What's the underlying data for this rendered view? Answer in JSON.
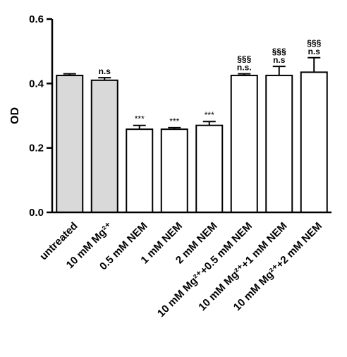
{
  "chart_data": {
    "type": "bar",
    "ylabel": "OD",
    "ylim": [
      0,
      0.6
    ],
    "yticks": [
      "0.0",
      "0.2",
      "0.4",
      "0.6"
    ],
    "categories": [
      "untreated",
      "10 mM Mg²⁺",
      "0.5 mM NEM",
      "1 mM NEM",
      "2 mM NEM",
      "10 mM Mg²⁺+0.5 mM NEM",
      "10 mM Mg²⁺+1 mM NEM",
      "10 mM Mg²⁺+2 mM NEM"
    ],
    "values": [
      0.425,
      0.41,
      0.258,
      0.258,
      0.27,
      0.425,
      0.425,
      0.435
    ],
    "errors": [
      0.005,
      0.008,
      0.012,
      0.005,
      0.012,
      0.005,
      0.028,
      0.045
    ],
    "fill_colors": [
      "#d9d9d9",
      "#d9d9d9",
      "#ffffff",
      "#ffffff",
      "#ffffff",
      "#ffffff",
      "#ffffff",
      "#ffffff"
    ],
    "annotations": [
      [],
      [
        "n.s"
      ],
      [
        "***"
      ],
      [
        "***"
      ],
      [
        "***"
      ],
      [
        "§§§",
        "n.s."
      ],
      [
        "§§§",
        "n.s"
      ],
      [
        "§§§",
        "n.s"
      ]
    ],
    "grid": false,
    "legend": "none"
  }
}
